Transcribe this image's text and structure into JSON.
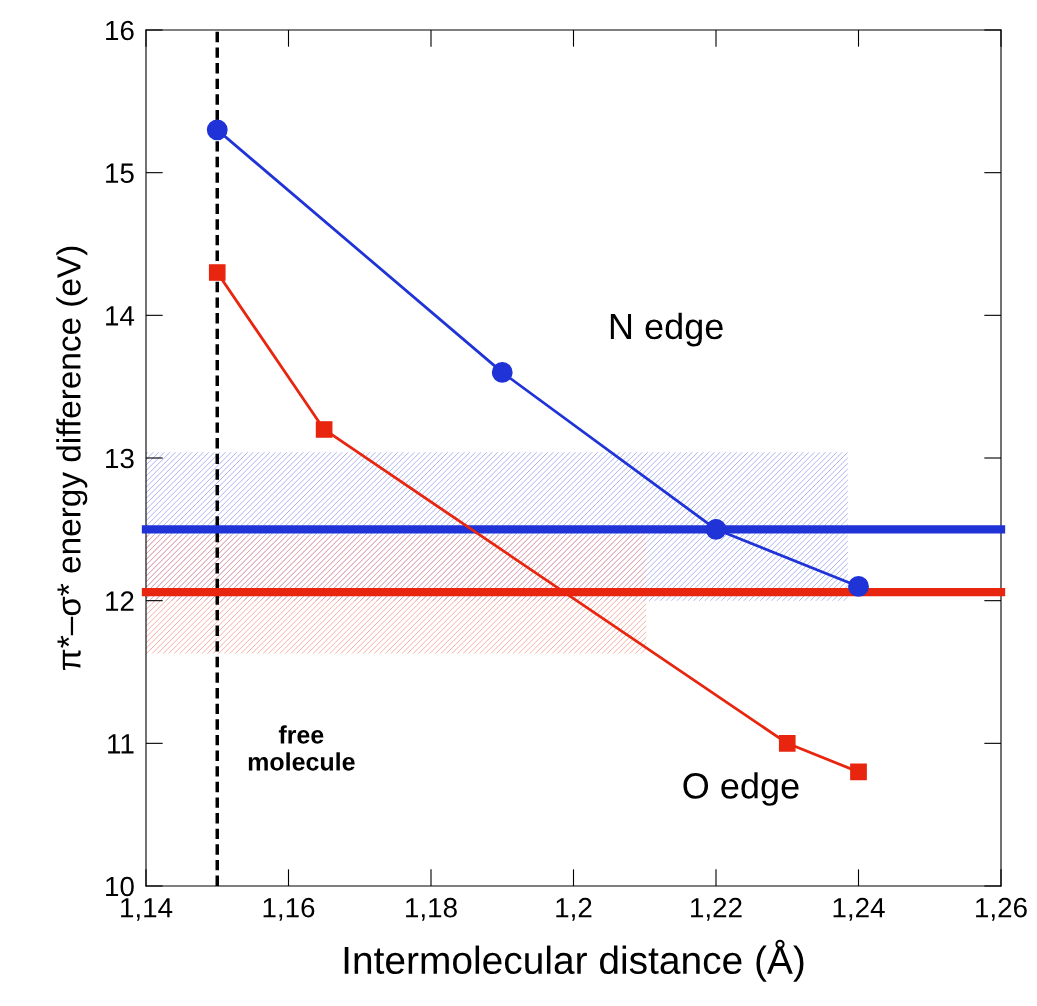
{
  "chart_data": {
    "type": "line",
    "xlabel": "Intermolecular distance (Å)",
    "ylabel": "π*–σ* energy difference (eV)",
    "xlim": [
      1.14,
      1.26
    ],
    "ylim": [
      10,
      16
    ],
    "xticks": [
      {
        "value": 1.14,
        "label": "1,14"
      },
      {
        "value": 1.16,
        "label": "1,16"
      },
      {
        "value": 1.18,
        "label": "1,18"
      },
      {
        "value": 1.2,
        "label": "1,2"
      },
      {
        "value": 1.22,
        "label": "1,22"
      },
      {
        "value": 1.24,
        "label": "1,24"
      },
      {
        "value": 1.26,
        "label": "1,26"
      }
    ],
    "yticks": [
      10,
      11,
      12,
      13,
      14,
      15,
      16
    ],
    "series": [
      {
        "name": "N edge",
        "color": "#1f33d6",
        "marker": "circle",
        "x": [
          1.15,
          1.19,
          1.22,
          1.24
        ],
        "values": [
          15.3,
          13.6,
          12.5,
          12.1
        ]
      },
      {
        "name": "O edge",
        "color": "#e8250e",
        "marker": "square",
        "x": [
          1.15,
          1.165,
          1.23,
          1.24
        ],
        "values": [
          14.3,
          13.2,
          11.0,
          10.8
        ]
      },
      {
        "color": "#1f33d6",
        "marker": "none",
        "x": [
          1.14,
          1.2385,
          1.26
        ],
        "values": [
          12.5,
          12.5,
          12.5
        ],
        "lower": [
          12.0,
          12.0,
          null
        ],
        "upper": [
          13.04,
          13.04,
          null
        ]
      },
      {
        "color": "#e8250e",
        "marker": "none",
        "x": [
          1.14,
          1.2102,
          1.26
        ],
        "values": [
          12.06,
          12.06,
          12.06
        ],
        "lower": [
          11.63,
          11.63,
          null
        ],
        "upper": [
          12.46,
          12.46,
          null
        ]
      }
    ],
    "ref_lines": [
      {
        "axis": "x",
        "value": 1.15,
        "label": "free\nmolecule",
        "color": "#000000",
        "line_style": "dashed"
      }
    ],
    "grid": false,
    "legend": false
  }
}
